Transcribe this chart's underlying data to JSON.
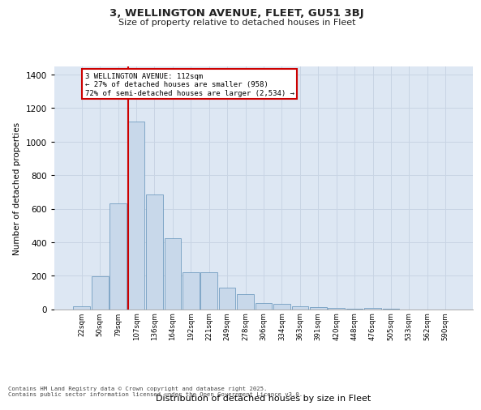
{
  "title_line1": "3, WELLINGTON AVENUE, FLEET, GU51 3BJ",
  "title_line2": "Size of property relative to detached houses in Fleet",
  "xlabel": "Distribution of detached houses by size in Fleet",
  "ylabel": "Number of detached properties",
  "categories": [
    "22sqm",
    "50sqm",
    "79sqm",
    "107sqm",
    "136sqm",
    "164sqm",
    "192sqm",
    "221sqm",
    "249sqm",
    "278sqm",
    "306sqm",
    "334sqm",
    "363sqm",
    "391sqm",
    "420sqm",
    "448sqm",
    "476sqm",
    "505sqm",
    "533sqm",
    "562sqm",
    "590sqm"
  ],
  "values": [
    20,
    195,
    630,
    1120,
    685,
    425,
    220,
    220,
    130,
    90,
    38,
    30,
    18,
    15,
    10,
    5,
    8,
    2,
    0,
    0,
    0
  ],
  "bar_color": "#c8d8ea",
  "bar_edge_color": "#6090b8",
  "grid_color": "#c8d4e4",
  "background_color": "#dde7f3",
  "vline_index": 3,
  "vline_color": "#cc0000",
  "annotation_text": "3 WELLINGTON AVENUE: 112sqm\n← 27% of detached houses are smaller (958)\n72% of semi-detached houses are larger (2,534) →",
  "annotation_box_edge_color": "#cc0000",
  "ylim": [
    0,
    1450
  ],
  "yticks": [
    0,
    200,
    400,
    600,
    800,
    1000,
    1200,
    1400
  ],
  "footer_line1": "Contains HM Land Registry data © Crown copyright and database right 2025.",
  "footer_line2": "Contains public sector information licensed under the Open Government Licence v3.0."
}
